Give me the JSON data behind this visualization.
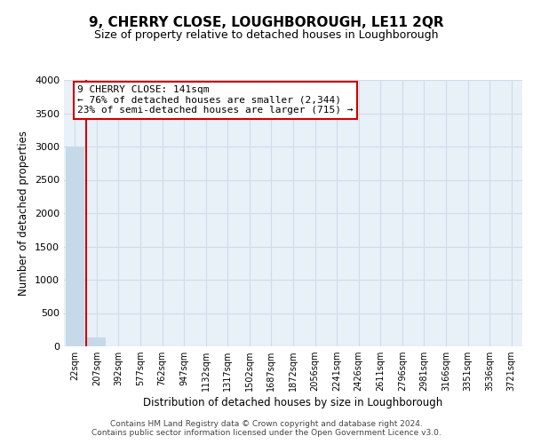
{
  "title": "9, CHERRY CLOSE, LOUGHBOROUGH, LE11 2QR",
  "subtitle": "Size of property relative to detached houses in Loughborough",
  "xlabel": "Distribution of detached houses by size in Loughborough",
  "ylabel": "Number of detached properties",
  "bin_labels": [
    "22sqm",
    "207sqm",
    "392sqm",
    "577sqm",
    "762sqm",
    "947sqm",
    "1132sqm",
    "1317sqm",
    "1502sqm",
    "1687sqm",
    "1872sqm",
    "2056sqm",
    "2241sqm",
    "2426sqm",
    "2611sqm",
    "2796sqm",
    "2981sqm",
    "3166sqm",
    "3351sqm",
    "3536sqm",
    "3721sqm"
  ],
  "bar_heights": [
    3000,
    130,
    0,
    0,
    0,
    0,
    0,
    0,
    0,
    0,
    0,
    0,
    0,
    0,
    0,
    0,
    0,
    0,
    0,
    0,
    0
  ],
  "bar_color": "#c6d9e8",
  "highlight_line_color": "#cc0000",
  "annotation_line1": "9 CHERRY CLOSE: 141sqm",
  "annotation_line2": "← 76% of detached houses are smaller (2,344)",
  "annotation_line3": "23% of semi-detached houses are larger (715) →",
  "annotation_box_color": "#cc0000",
  "ylim": [
    0,
    4000
  ],
  "yticks": [
    0,
    500,
    1000,
    1500,
    2000,
    2500,
    3000,
    3500,
    4000
  ],
  "grid_color": "#d0dce8",
  "bg_color": "#e8f0f8",
  "footer_line1": "Contains HM Land Registry data © Crown copyright and database right 2024.",
  "footer_line2": "Contains public sector information licensed under the Open Government Licence v3.0.",
  "title_fontsize": 11,
  "subtitle_fontsize": 9
}
